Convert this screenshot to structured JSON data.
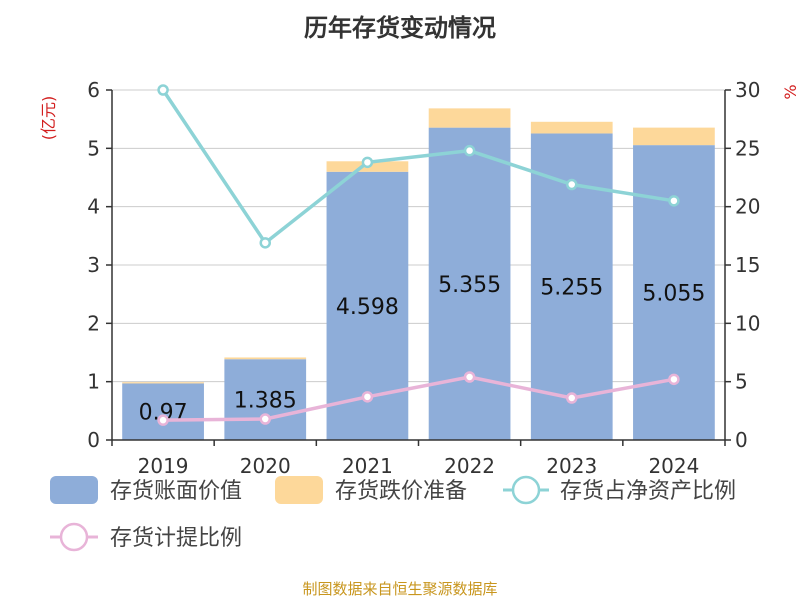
{
  "title": "历年存货变动情况",
  "source": "制图数据来自恒生聚源数据库",
  "colors": {
    "bar_book": "#8eadd9",
    "bar_reserve": "#fdd89a",
    "line_ratio_net": "#8dd3d6",
    "line_ratio_provision": "#e8b4d8",
    "axis": "#333333",
    "grid": "#cccccc",
    "unit": "#d21e1e"
  },
  "chart_data": {
    "type": "bar",
    "categories": [
      "2019",
      "2020",
      "2021",
      "2022",
      "2023",
      "2024"
    ],
    "y_left": {
      "label": "(亿元)",
      "range": [
        0,
        6
      ],
      "ticks": [
        0,
        1,
        2,
        3,
        4,
        5,
        6
      ]
    },
    "y_right": {
      "label": "%",
      "range": [
        0,
        30
      ],
      "ticks": [
        0,
        5,
        10,
        15,
        20,
        25,
        30
      ]
    },
    "grid": true,
    "legend_position": "bottom",
    "series": [
      {
        "name": "存货账面价值",
        "kind": "bar",
        "axis": "left",
        "values": [
          0.97,
          1.385,
          4.598,
          5.355,
          5.255,
          5.055
        ],
        "data_labels": [
          "0.97",
          "1.385",
          "4.598",
          "5.355",
          "5.255",
          "5.055"
        ]
      },
      {
        "name": "存货跌价准备",
        "kind": "bar-stacked",
        "axis": "left",
        "values": [
          0.02,
          0.03,
          0.18,
          0.33,
          0.2,
          0.3
        ]
      },
      {
        "name": "存货占净资产比例",
        "kind": "line",
        "axis": "right",
        "values": [
          30.0,
          16.9,
          23.8,
          24.8,
          21.9,
          20.5
        ]
      },
      {
        "name": "存货计提比例",
        "kind": "line",
        "axis": "right",
        "values": [
          1.7,
          1.8,
          3.7,
          5.4,
          3.6,
          5.2
        ]
      }
    ]
  }
}
